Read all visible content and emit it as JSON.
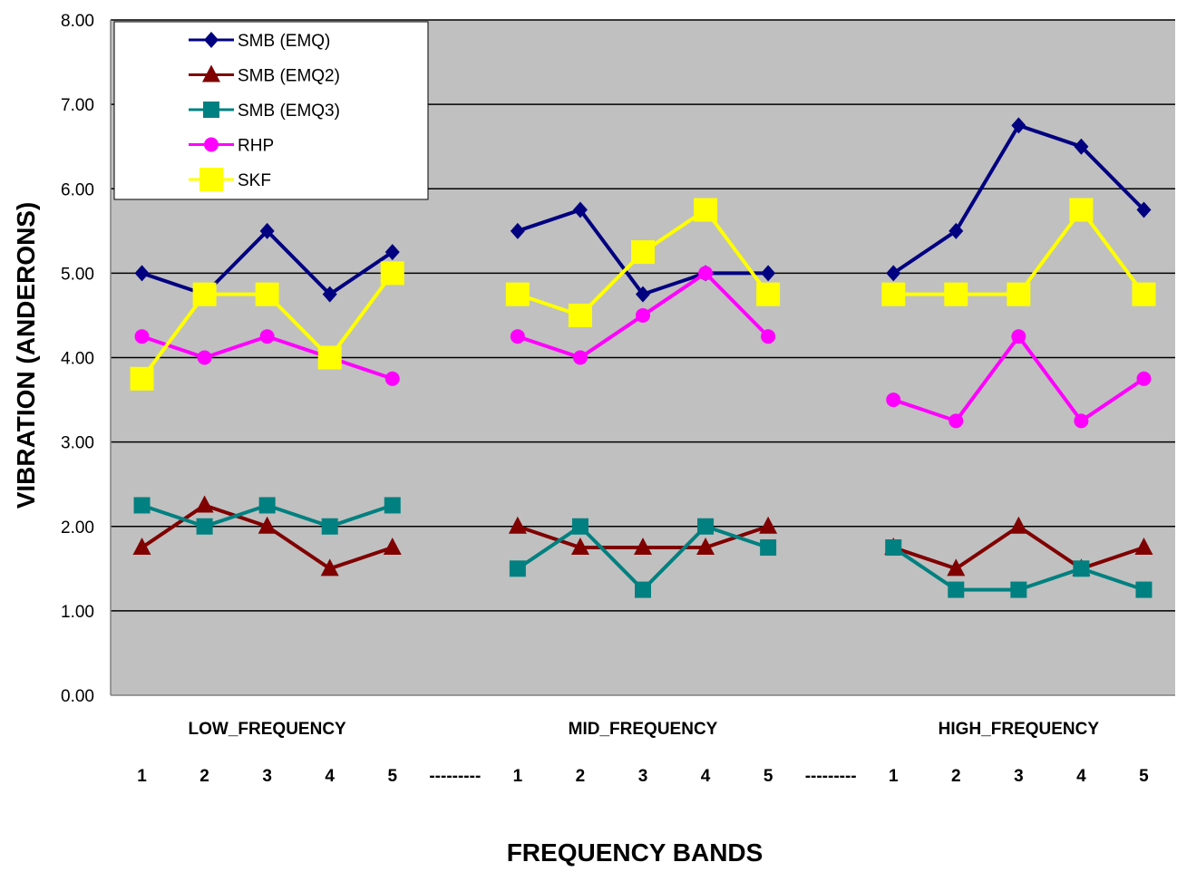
{
  "chart_data": {
    "type": "line",
    "title": "",
    "xlabel": "FREQUENCY BANDS",
    "ylabel": "VIBRATION (ANDERONS)",
    "ylim": [
      0,
      8
    ],
    "yticks": [
      "0.00",
      "1.00",
      "2.00",
      "3.00",
      "4.00",
      "5.00",
      "6.00",
      "7.00",
      "8.00"
    ],
    "grid": true,
    "legend_position": "top-left",
    "groups": [
      {
        "label": "LOW_FREQUENCY"
      },
      {
        "label": "MID_FREQUENCY"
      },
      {
        "label": "HIGH_FREQUENCY"
      }
    ],
    "categories": [
      "1",
      "2",
      "3",
      "4",
      "5",
      "---------",
      "1",
      "2",
      "3",
      "4",
      "5",
      "---------",
      "1",
      "2",
      "3",
      "4",
      "5"
    ],
    "series": [
      {
        "name": "SMB (EMQ)",
        "color": "#000080",
        "marker": "diamond",
        "values": [
          5.0,
          4.75,
          5.5,
          4.75,
          5.25,
          null,
          5.5,
          5.75,
          4.75,
          5.0,
          5.0,
          null,
          5.0,
          5.5,
          6.75,
          6.5,
          5.75
        ]
      },
      {
        "name": "SMB (EMQ2)",
        "color": "#800000",
        "marker": "triangle",
        "values": [
          1.75,
          2.25,
          2.0,
          1.5,
          1.75,
          null,
          2.0,
          1.75,
          1.75,
          1.75,
          2.0,
          null,
          1.75,
          1.5,
          2.0,
          1.5,
          1.75
        ]
      },
      {
        "name": "SMB (EMQ3)",
        "color": "#008080",
        "marker": "square",
        "values": [
          2.25,
          2.0,
          2.25,
          2.0,
          2.25,
          null,
          1.5,
          2.0,
          1.25,
          2.0,
          1.75,
          null,
          1.75,
          1.25,
          1.25,
          1.5,
          1.25
        ]
      },
      {
        "name": "RHP",
        "color": "#ff00ff",
        "marker": "circle",
        "values": [
          4.25,
          4.0,
          4.25,
          4.0,
          3.75,
          null,
          4.25,
          4.0,
          4.5,
          5.0,
          4.25,
          null,
          3.5,
          3.25,
          4.25,
          3.25,
          3.75
        ]
      },
      {
        "name": "SKF",
        "color": "#ffff00",
        "marker": "bigsquare",
        "values": [
          3.75,
          4.75,
          4.75,
          4.0,
          5.0,
          null,
          4.75,
          4.5,
          5.25,
          5.75,
          4.75,
          null,
          4.75,
          4.75,
          4.75,
          5.75,
          4.75
        ]
      }
    ]
  }
}
